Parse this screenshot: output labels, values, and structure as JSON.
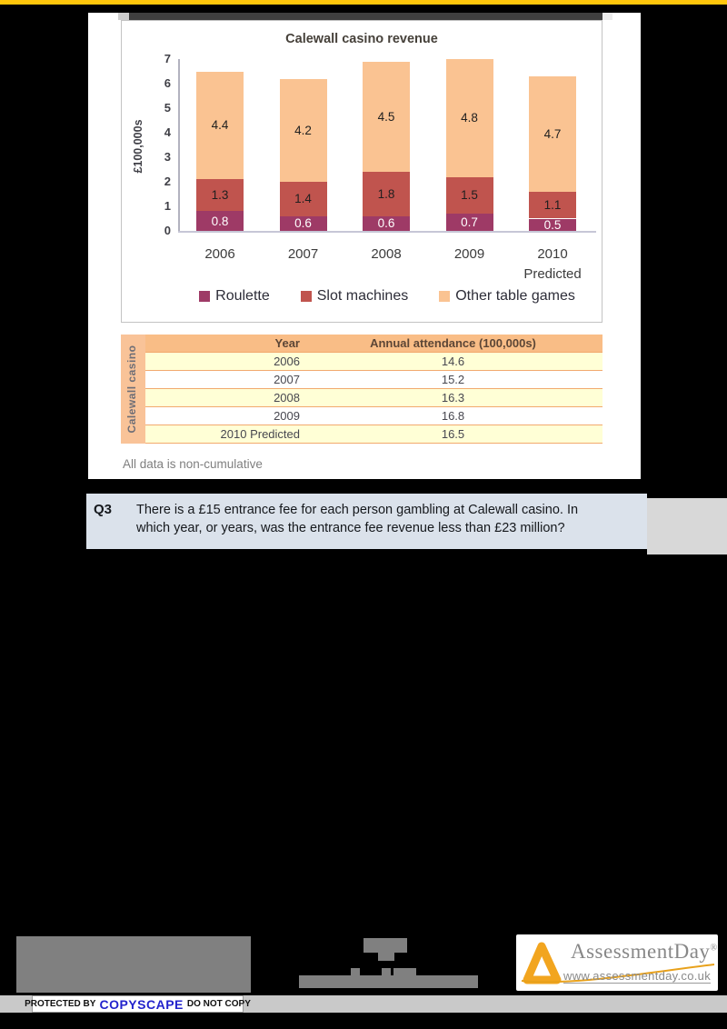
{
  "colors": {
    "accent_yellow": "#FFC60B",
    "q3_background": "#DBE2EB",
    "table_header_bg": "#F9BD86",
    "table_row_alt_bg": "#FFFFD6",
    "copyscape_blue": "#2323CC",
    "assessmentday_orange": "#F2A51F"
  },
  "chart_data": {
    "type": "bar",
    "stacked": true,
    "title": "Calewall casino revenue",
    "xlabel": "",
    "ylabel": "£100,000s",
    "ylim": [
      0,
      7
    ],
    "ytick_step": 1,
    "grid": false,
    "legend_position": "bottom",
    "categories": [
      {
        "label": "2006",
        "sublabel": ""
      },
      {
        "label": "2007",
        "sublabel": ""
      },
      {
        "label": "2008",
        "sublabel": ""
      },
      {
        "label": "2009",
        "sublabel": ""
      },
      {
        "label": "2010",
        "sublabel": "Predicted"
      }
    ],
    "series": [
      {
        "key": "roulette",
        "name": "Roulette",
        "color": "#9E3A66",
        "label_color": "#ffffff",
        "values": [
          0.8,
          0.6,
          0.6,
          0.7,
          0.5
        ]
      },
      {
        "key": "slot-machines",
        "name": "Slot machines",
        "color": "#C0544E",
        "label_color": "#1f1f1f",
        "values": [
          1.3,
          1.4,
          1.8,
          1.5,
          1.1
        ]
      },
      {
        "key": "other-table-games",
        "name": "Other table games",
        "color": "#FAC392",
        "label_color": "#1f1f1f",
        "values": [
          4.4,
          4.2,
          4.5,
          4.8,
          4.7
        ]
      }
    ]
  },
  "table": {
    "side_label": "Calewall casino",
    "headers": [
      "Year",
      "Annual attendance (100,000s)"
    ],
    "rows": [
      [
        "2006",
        "14.6"
      ],
      [
        "2007",
        "15.2"
      ],
      [
        "2008",
        "16.3"
      ],
      [
        "2009",
        "16.8"
      ],
      [
        "2010 Predicted",
        "16.5"
      ]
    ]
  },
  "note": "All data is non-cumulative",
  "question": {
    "id": "Q3",
    "lines": [
      "There is a £15 entrance fee for each person gambling at Calewall casino. In",
      "which year, or years, was the entrance fee revenue less than £23 million?"
    ]
  },
  "footer": {
    "copyscape": {
      "protected_by": "PROTECTED BY",
      "brand": "COPYSCAPE",
      "do_not_copy": "DO NOT COPY"
    },
    "assessmentday": {
      "name": "AssessmentDay",
      "reg": "®",
      "url": "www.assessmentday.co.uk"
    }
  }
}
